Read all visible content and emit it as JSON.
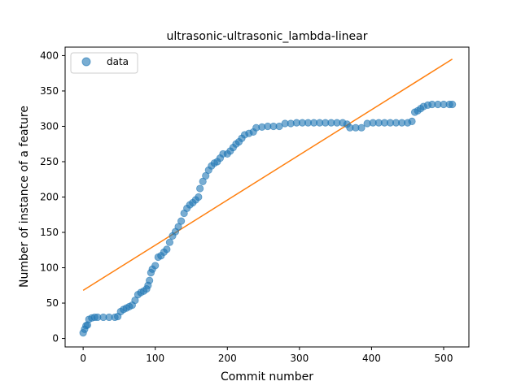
{
  "chart_data": {
    "type": "scatter",
    "title": "ultrasonic-ultrasonic_lambda-linear",
    "xlabel": "Commit number",
    "ylabel": "Number of instance of a feature",
    "xlim": [
      -25,
      535
    ],
    "ylim": [
      -12,
      412
    ],
    "x_ticks": [
      0,
      100,
      200,
      300,
      400,
      500
    ],
    "y_ticks": [
      0,
      50,
      100,
      150,
      200,
      250,
      300,
      350,
      400
    ],
    "grid": false,
    "legend": {
      "position": "top-left",
      "entries": [
        "data"
      ]
    },
    "colors": {
      "data": "#1f77b4",
      "fit": "#ff7f0e"
    },
    "series": [
      {
        "name": "data",
        "kind": "scatter",
        "points": [
          [
            0,
            8
          ],
          [
            2,
            13
          ],
          [
            4,
            18
          ],
          [
            6,
            19
          ],
          [
            8,
            27
          ],
          [
            12,
            29
          ],
          [
            16,
            30
          ],
          [
            20,
            30
          ],
          [
            28,
            30
          ],
          [
            36,
            30
          ],
          [
            44,
            30
          ],
          [
            48,
            31
          ],
          [
            52,
            38
          ],
          [
            56,
            41
          ],
          [
            60,
            43
          ],
          [
            64,
            45
          ],
          [
            68,
            47
          ],
          [
            72,
            54
          ],
          [
            76,
            62
          ],
          [
            80,
            65
          ],
          [
            84,
            67
          ],
          [
            88,
            70
          ],
          [
            90,
            75
          ],
          [
            92,
            82
          ],
          [
            94,
            93
          ],
          [
            96,
            98
          ],
          [
            100,
            103
          ],
          [
            104,
            115
          ],
          [
            108,
            117
          ],
          [
            112,
            122
          ],
          [
            116,
            126
          ],
          [
            120,
            136
          ],
          [
            124,
            145
          ],
          [
            128,
            151
          ],
          [
            132,
            158
          ],
          [
            136,
            166
          ],
          [
            140,
            177
          ],
          [
            144,
            184
          ],
          [
            148,
            189
          ],
          [
            152,
            192
          ],
          [
            156,
            196
          ],
          [
            160,
            200
          ],
          [
            162,
            212
          ],
          [
            166,
            222
          ],
          [
            170,
            230
          ],
          [
            174,
            238
          ],
          [
            178,
            244
          ],
          [
            182,
            248
          ],
          [
            186,
            250
          ],
          [
            190,
            255
          ],
          [
            194,
            261
          ],
          [
            200,
            261
          ],
          [
            204,
            265
          ],
          [
            208,
            270
          ],
          [
            212,
            275
          ],
          [
            216,
            278
          ],
          [
            220,
            283
          ],
          [
            224,
            288
          ],
          [
            230,
            290
          ],
          [
            236,
            292
          ],
          [
            240,
            298
          ],
          [
            248,
            299
          ],
          [
            256,
            300
          ],
          [
            264,
            300
          ],
          [
            272,
            300
          ],
          [
            280,
            304
          ],
          [
            288,
            304
          ],
          [
            296,
            305
          ],
          [
            304,
            305
          ],
          [
            312,
            305
          ],
          [
            320,
            305
          ],
          [
            328,
            305
          ],
          [
            336,
            305
          ],
          [
            344,
            305
          ],
          [
            352,
            305
          ],
          [
            360,
            305
          ],
          [
            366,
            303
          ],
          [
            370,
            298
          ],
          [
            378,
            298
          ],
          [
            386,
            298
          ],
          [
            394,
            304
          ],
          [
            402,
            305
          ],
          [
            410,
            305
          ],
          [
            418,
            305
          ],
          [
            426,
            305
          ],
          [
            434,
            305
          ],
          [
            442,
            305
          ],
          [
            450,
            305
          ],
          [
            456,
            307
          ],
          [
            460,
            320
          ],
          [
            464,
            322
          ],
          [
            468,
            325
          ],
          [
            472,
            328
          ],
          [
            478,
            330
          ],
          [
            484,
            331
          ],
          [
            492,
            331
          ],
          [
            500,
            331
          ],
          [
            508,
            331
          ],
          [
            512,
            331
          ]
        ]
      },
      {
        "name": "",
        "kind": "line",
        "points": [
          [
            0,
            68
          ],
          [
            512,
            395
          ]
        ]
      }
    ]
  }
}
